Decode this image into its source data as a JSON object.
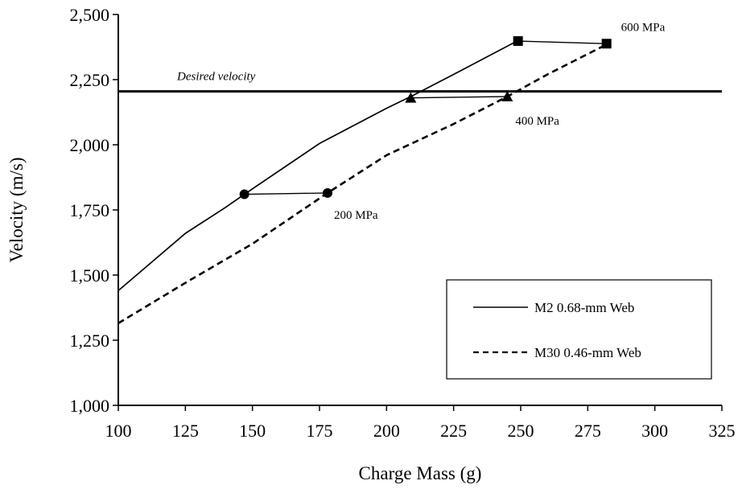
{
  "chart_data": {
    "type": "line",
    "title": "",
    "xlabel": "Charge Mass (g)",
    "ylabel": "Velocity (m/s)",
    "xlim": [
      100,
      325
    ],
    "ylim": [
      1000,
      2500
    ],
    "x_ticks": [
      100,
      125,
      150,
      175,
      200,
      225,
      250,
      275,
      300,
      325
    ],
    "y_ticks": [
      1000,
      1250,
      1500,
      1750,
      2000,
      2250,
      2500
    ],
    "x_tick_labels": [
      "100",
      "125",
      "150",
      "175",
      "200",
      "225",
      "250",
      "275",
      "300",
      "325"
    ],
    "y_tick_labels": [
      "1,000",
      "1,250",
      "1,500",
      "1,750",
      "2,000",
      "2,250",
      "2,500"
    ],
    "grid": false,
    "legend_position": "bottom-right",
    "series": [
      {
        "name": "M2 0.68-mm Web",
        "style": "solid",
        "x": [
          100,
          125,
          140,
          147,
          175,
          200,
          210,
          225,
          249
        ],
        "y": [
          1440,
          1660,
          1760,
          1810,
          2005,
          2140,
          2190,
          2270,
          2400
        ]
      },
      {
        "name": "M30 0.46-mm Web",
        "style": "dashed",
        "x": [
          100,
          125,
          150,
          178,
          200,
          225,
          245,
          260,
          282
        ],
        "y": [
          1315,
          1470,
          1620,
          1815,
          1960,
          2080,
          2185,
          2270,
          2385
        ]
      }
    ],
    "reference_line": {
      "label": "Desired velocity",
      "y": 2205
    },
    "pressure_markers": [
      {
        "label": "200 MPa",
        "shape": "circle",
        "points": [
          [
            147,
            1810
          ],
          [
            178,
            1815
          ]
        ]
      },
      {
        "label": "400 MPa",
        "shape": "triangle",
        "points": [
          [
            209,
            2180
          ],
          [
            245,
            2185
          ]
        ]
      },
      {
        "label": "600 MPa",
        "shape": "square",
        "points": [
          [
            249,
            2398
          ],
          [
            282,
            2388
          ]
        ]
      }
    ]
  }
}
